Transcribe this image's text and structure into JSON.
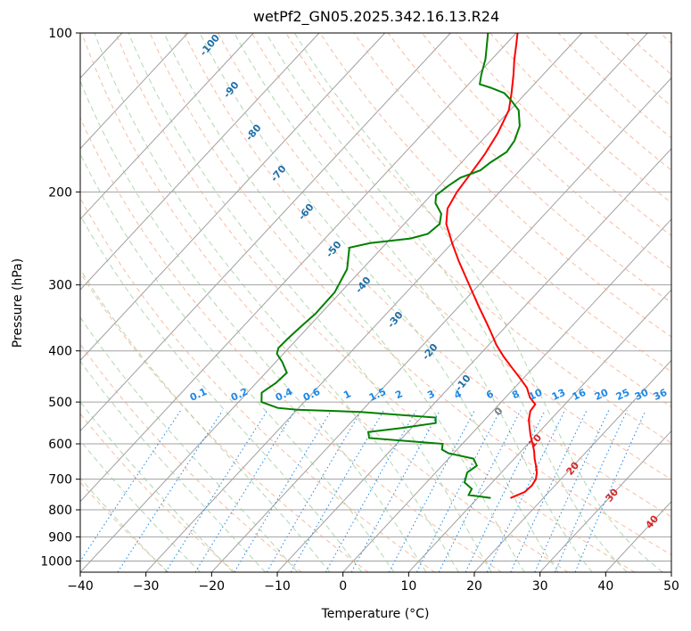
{
  "chart_data": {
    "type": "skew-t",
    "title": "wetPf2_GN05.2025.342.16.13.R24",
    "xlabel": "Temperature (°C)",
    "ylabel": "Pressure (hPa)",
    "xlim": [
      -40,
      50
    ],
    "ylim_hPa": [
      1050,
      100
    ],
    "x_ticks": [
      -40,
      -30,
      -20,
      -10,
      0,
      10,
      20,
      30,
      40,
      50
    ],
    "y_ticks": [
      100,
      200,
      300,
      400,
      500,
      600,
      700,
      800,
      900,
      1000
    ],
    "grid": true,
    "series": [
      {
        "color": "#ff0000",
        "values": [
          {
            "p": 760,
            "t": 15.0
          },
          {
            "p": 740,
            "t": 16.3
          },
          {
            "p": 720,
            "t": 16.5
          },
          {
            "p": 700,
            "t": 16.2
          },
          {
            "p": 680,
            "t": 15.4
          },
          {
            "p": 660,
            "t": 14.3
          },
          {
            "p": 640,
            "t": 13.1
          },
          {
            "p": 620,
            "t": 12.0
          },
          {
            "p": 600,
            "t": 10.7
          },
          {
            "p": 580,
            "t": 9.3
          },
          {
            "p": 560,
            "t": 8.0
          },
          {
            "p": 540,
            "t": 6.7
          },
          {
            "p": 520,
            "t": 5.7
          },
          {
            "p": 505,
            "t": 5.5
          },
          {
            "p": 490,
            "t": 3.7
          },
          {
            "p": 470,
            "t": 1.9
          },
          {
            "p": 450,
            "t": -0.6
          },
          {
            "p": 430,
            "t": -3.3
          },
          {
            "p": 410,
            "t": -6.1
          },
          {
            "p": 390,
            "t": -8.8
          },
          {
            "p": 370,
            "t": -11.3
          },
          {
            "p": 350,
            "t": -14.0
          },
          {
            "p": 330,
            "t": -16.9
          },
          {
            "p": 310,
            "t": -19.9
          },
          {
            "p": 290,
            "t": -23.1
          },
          {
            "p": 270,
            "t": -26.5
          },
          {
            "p": 250,
            "t": -30.0
          },
          {
            "p": 230,
            "t": -33.6
          },
          {
            "p": 215,
            "t": -35.6
          },
          {
            "p": 200,
            "t": -36.5
          },
          {
            "p": 185,
            "t": -37.0
          },
          {
            "p": 170,
            "t": -37.6
          },
          {
            "p": 155,
            "t": -38.6
          },
          {
            "p": 140,
            "t": -40.2
          },
          {
            "p": 130,
            "t": -42.2
          },
          {
            "p": 120,
            "t": -44.5
          },
          {
            "p": 112,
            "t": -46.6
          },
          {
            "p": 105,
            "t": -48.4
          },
          {
            "p": 100,
            "t": -49.8
          }
        ]
      },
      {
        "color": "#008000",
        "values": [
          {
            "p": 760,
            "t": 12.0
          },
          {
            "p": 755,
            "t": 10.2
          },
          {
            "p": 750,
            "t": 8.2
          },
          {
            "p": 730,
            "t": 7.8
          },
          {
            "p": 710,
            "t": 5.8
          },
          {
            "p": 680,
            "t": 4.8
          },
          {
            "p": 660,
            "t": 5.3
          },
          {
            "p": 640,
            "t": 3.8
          },
          {
            "p": 625,
            "t": -0.8
          },
          {
            "p": 615,
            "t": -2.3
          },
          {
            "p": 600,
            "t": -3.0
          },
          {
            "p": 585,
            "t": -15.0
          },
          {
            "p": 570,
            "t": -16.0
          },
          {
            "p": 560,
            "t": -11.5
          },
          {
            "p": 548,
            "t": -7.0
          },
          {
            "p": 535,
            "t": -7.8
          },
          {
            "p": 522,
            "t": -20.0
          },
          {
            "p": 517,
            "t": -30.0
          },
          {
            "p": 513,
            "t": -33.2
          },
          {
            "p": 500,
            "t": -36.5
          },
          {
            "p": 480,
            "t": -37.8
          },
          {
            "p": 460,
            "t": -37.0
          },
          {
            "p": 440,
            "t": -36.8
          },
          {
            "p": 420,
            "t": -39.0
          },
          {
            "p": 405,
            "t": -41.0
          },
          {
            "p": 395,
            "t": -41.6
          },
          {
            "p": 380,
            "t": -41.5
          },
          {
            "p": 360,
            "t": -41.2
          },
          {
            "p": 340,
            "t": -40.8
          },
          {
            "p": 310,
            "t": -40.9
          },
          {
            "p": 280,
            "t": -42.3
          },
          {
            "p": 255,
            "t": -45.0
          },
          {
            "p": 250,
            "t": -42.5
          },
          {
            "p": 245,
            "t": -37.0
          },
          {
            "p": 240,
            "t": -35.0
          },
          {
            "p": 230,
            "t": -34.6
          },
          {
            "p": 220,
            "t": -35.8
          },
          {
            "p": 210,
            "t": -38.2
          },
          {
            "p": 203,
            "t": -39.2
          },
          {
            "p": 195,
            "t": -38.7
          },
          {
            "p": 188,
            "t": -38.0
          },
          {
            "p": 182,
            "t": -36.0
          },
          {
            "p": 176,
            "t": -35.6
          },
          {
            "p": 168,
            "t": -34.6
          },
          {
            "p": 160,
            "t": -35.0
          },
          {
            "p": 150,
            "t": -36.3
          },
          {
            "p": 140,
            "t": -38.7
          },
          {
            "p": 134,
            "t": -41.3
          },
          {
            "p": 130,
            "t": -43.3
          },
          {
            "p": 127,
            "t": -46.1
          },
          {
            "p": 125,
            "t": -48.3
          },
          {
            "p": 120,
            "t": -49.4
          },
          {
            "p": 112,
            "t": -51.0
          },
          {
            "p": 106,
            "t": -52.6
          },
          {
            "p": 100,
            "t": -54.3
          }
        ]
      }
    ],
    "annotations": {
      "dry_adiabats": [
        "-100",
        "-90",
        "-80",
        "-70",
        "-60",
        "-50",
        "-40",
        "-30",
        "-20",
        "-10",
        "0",
        "10",
        "20",
        "30",
        "40"
      ],
      "mixing_ratios": [
        "0.1",
        "0.2",
        "0.4",
        "0.6",
        "1",
        "1.5",
        "2",
        "3",
        "4",
        "6",
        "8",
        "10",
        "13",
        "16",
        "20",
        "25",
        "30",
        "36"
      ]
    },
    "colors": {
      "temperature": "#ff0000",
      "dewpoint": "#008000",
      "isotherm": "#a0a0a0",
      "isobar": "#a0a0a0",
      "dry_adiabat": "#f4a582",
      "moist_adiabat": "#90c890",
      "mixing_ratio": "#1e88e5",
      "dry_adiabat_label": "#1f6fa8",
      "hot_adiabat_label": "#d62728",
      "zero_label": "#7f7f7f"
    }
  }
}
